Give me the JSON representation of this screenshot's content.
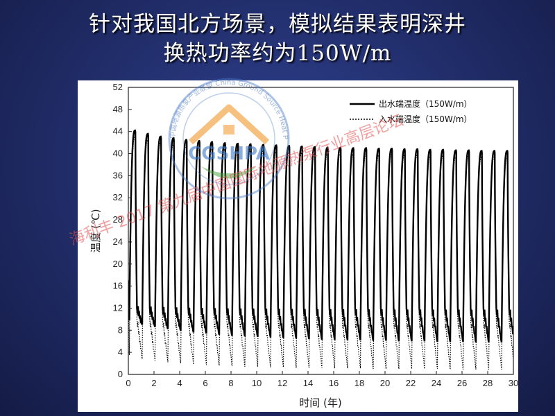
{
  "slide": {
    "title_line1": "针对我国北方场景，模拟结果表明深井",
    "title_line2": "换热功率约为150W/m"
  },
  "watermark": {
    "logo_text": "CGSHPA",
    "ring_text": "中国地源热泵产业联盟 China Ground Source Heat Pump Association",
    "overlay_text": "海利丰 2017 第九届中国国际地源热泵行业高层论坛"
  },
  "chart_data": {
    "type": "line",
    "title": "",
    "xlabel": "时间 (年)",
    "ylabel": "温度 (℃)",
    "xlim": [
      0,
      30
    ],
    "ylim": [
      0,
      52
    ],
    "x_ticks": [
      0,
      2,
      4,
      6,
      8,
      10,
      12,
      14,
      16,
      18,
      20,
      22,
      24,
      26,
      28,
      30
    ],
    "y_ticks": [
      0,
      4,
      8,
      12,
      16,
      20,
      24,
      28,
      32,
      36,
      40,
      44,
      48,
      52
    ],
    "grid": false,
    "legend": {
      "position": "top-right"
    },
    "cycle_period_years": 1,
    "series": [
      {
        "name": "出水端温度（150W/m）",
        "style": "solid",
        "annual_peak_values": [
          44.2,
          43.6,
          43.1,
          42.8,
          42.5,
          42.3,
          42.1,
          41.9,
          41.8,
          41.7,
          41.6,
          41.5,
          41.4,
          41.3,
          41.2,
          41.1,
          41.1,
          41.0,
          41.0,
          40.9,
          40.9,
          40.8,
          40.8,
          40.7,
          40.7,
          40.6,
          40.6,
          40.5,
          40.5,
          40.5
        ],
        "annual_min_values": [
          9.8,
          9.0,
          8.6,
          8.2,
          7.9,
          7.6,
          7.4,
          7.2,
          7.0,
          6.9,
          6.8,
          6.7,
          6.6,
          6.5,
          6.4,
          6.3,
          6.3,
          6.2,
          6.2,
          6.1,
          6.1,
          6.0,
          6.0,
          6.0,
          5.9,
          5.9,
          5.9,
          5.8,
          5.8,
          5.8
        ]
      },
      {
        "name": "入水端温度（150W/m）",
        "style": "dotted",
        "annual_peak_values": [
          43.0,
          42.5,
          42.0,
          41.7,
          41.4,
          41.2,
          41.0,
          40.8,
          40.7,
          40.6,
          40.5,
          40.4,
          40.3,
          40.2,
          40.1,
          40.0,
          40.0,
          39.9,
          39.9,
          39.8,
          39.8,
          39.7,
          39.7,
          39.6,
          39.6,
          39.5,
          39.5,
          39.4,
          39.4,
          39.4
        ],
        "annual_min_values": [
          3.5,
          2.8,
          2.5,
          2.2,
          2.0,
          1.8,
          1.7,
          1.6,
          1.5,
          1.4,
          1.4,
          1.3,
          1.3,
          1.2,
          1.2,
          1.2,
          1.1,
          1.1,
          1.1,
          1.0,
          1.0,
          1.0,
          1.0,
          1.0,
          1.0,
          0.9,
          0.9,
          0.9,
          0.9,
          0.9
        ]
      }
    ]
  }
}
